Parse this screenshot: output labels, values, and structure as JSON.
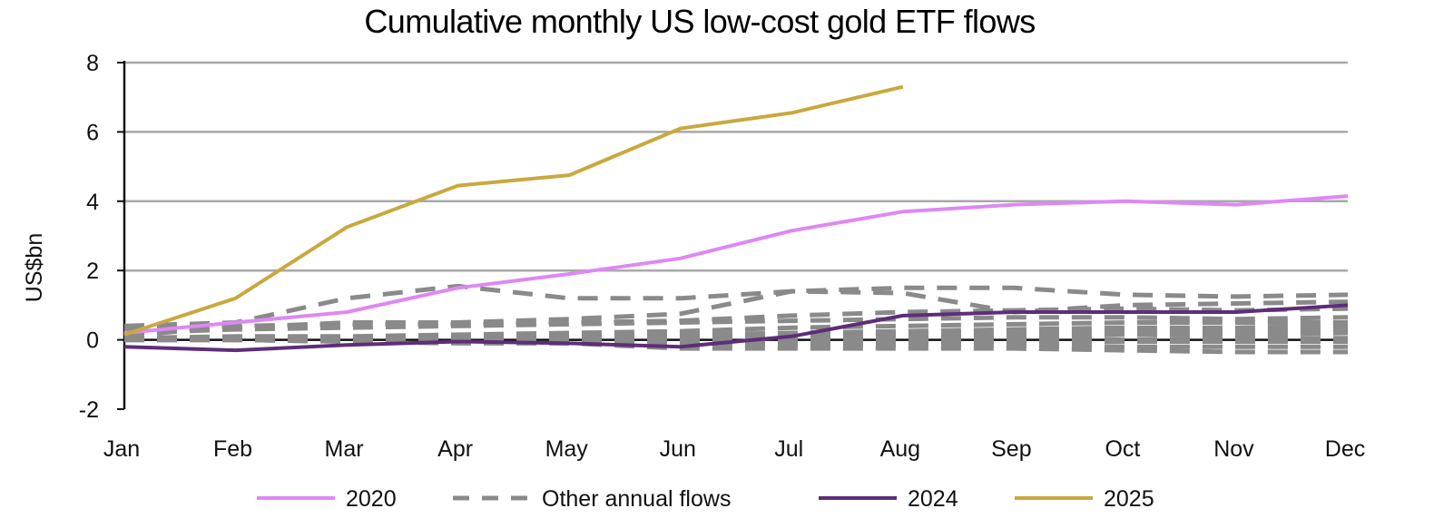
{
  "chart_data": {
    "type": "line",
    "title": "Cumulative monthly US low-cost gold ETF flows",
    "xlabel": "",
    "ylabel": "US$bn",
    "ylim": [
      -2,
      8
    ],
    "yticks": [
      8,
      6,
      4,
      2,
      0,
      -2
    ],
    "grid": "horizontal",
    "legend_position": "bottom",
    "categories": [
      "Jan",
      "Feb",
      "Mar",
      "Apr",
      "May",
      "Jun",
      "Jul",
      "Aug",
      "Sep",
      "Oct",
      "Nov",
      "Dec"
    ],
    "series": [
      {
        "name": "Other annual flows",
        "style": "dashed",
        "color": "#8a8a8a",
        "values": [
          0.4,
          0.5,
          1.2,
          1.55,
          1.2,
          1.2,
          1.4,
          1.5,
          1.5,
          1.3,
          1.25,
          1.3
        ]
      },
      {
        "name": "Other annual flows",
        "style": "dashed",
        "color": "#8a8a8a",
        "values": [
          0.3,
          0.35,
          0.5,
          0.5,
          0.6,
          0.75,
          1.4,
          1.35,
          0.8,
          1.0,
          1.05,
          1.1
        ]
      },
      {
        "name": "Other annual flows",
        "style": "dashed",
        "color": "#8a8a8a",
        "values": [
          0.1,
          0.4,
          0.45,
          0.45,
          0.5,
          0.55,
          0.7,
          0.8,
          0.85,
          0.9,
          0.85,
          0.9
        ]
      },
      {
        "name": "Other annual flows",
        "style": "dashed",
        "color": "#8a8a8a",
        "values": [
          0.2,
          0.3,
          0.35,
          0.4,
          0.45,
          0.5,
          0.55,
          0.6,
          0.65,
          0.65,
          0.6,
          0.65
        ]
      },
      {
        "name": "Other annual flows",
        "style": "dashed",
        "color": "#8a8a8a",
        "values": [
          0.05,
          0.1,
          0.1,
          0.15,
          0.2,
          0.25,
          0.35,
          0.4,
          0.45,
          0.5,
          0.5,
          0.5
        ]
      },
      {
        "name": "Other annual flows",
        "style": "dashed",
        "color": "#8a8a8a",
        "values": [
          0.0,
          0.05,
          0.05,
          0.05,
          0.1,
          0.15,
          0.2,
          0.25,
          0.3,
          0.35,
          0.35,
          0.4
        ]
      },
      {
        "name": "Other annual flows",
        "style": "dashed",
        "color": "#8a8a8a",
        "values": [
          0.0,
          0.0,
          0.05,
          0.05,
          0.05,
          0.1,
          0.15,
          0.2,
          0.2,
          0.25,
          0.25,
          0.3
        ]
      },
      {
        "name": "Other annual flows",
        "style": "dashed",
        "color": "#8a8a8a",
        "values": [
          0.0,
          0.0,
          0.0,
          0.05,
          0.05,
          0.05,
          0.1,
          0.15,
          0.1,
          0.15,
          0.15,
          0.2
        ]
      },
      {
        "name": "Other annual flows",
        "style": "dashed",
        "color": "#8a8a8a",
        "values": [
          0.0,
          0.0,
          0.0,
          0.0,
          0.0,
          0.0,
          0.05,
          0.05,
          0.05,
          0.0,
          0.05,
          0.05
        ]
      },
      {
        "name": "Other annual flows",
        "style": "dashed",
        "color": "#8a8a8a",
        "values": [
          0.0,
          0.0,
          0.0,
          -0.05,
          -0.05,
          -0.1,
          -0.05,
          -0.05,
          -0.05,
          -0.05,
          -0.05,
          -0.05
        ]
      },
      {
        "name": "Other annual flows",
        "style": "dashed",
        "color": "#8a8a8a",
        "values": [
          0.0,
          0.0,
          -0.05,
          -0.05,
          -0.1,
          -0.15,
          -0.15,
          -0.15,
          -0.15,
          -0.2,
          -0.2,
          -0.2
        ]
      },
      {
        "name": "Other annual flows",
        "style": "dashed",
        "color": "#8a8a8a",
        "values": [
          0.0,
          0.0,
          -0.05,
          -0.1,
          -0.1,
          -0.25,
          -0.25,
          -0.25,
          -0.25,
          -0.3,
          -0.35,
          -0.35
        ]
      },
      {
        "name": "2020",
        "style": "solid",
        "color": "#dd88f5",
        "values": [
          0.2,
          0.5,
          0.8,
          1.5,
          1.9,
          2.35,
          3.15,
          3.7,
          3.9,
          4.0,
          3.9,
          4.15
        ]
      },
      {
        "name": "2024",
        "style": "solid",
        "color": "#5e2d7a",
        "values": [
          -0.2,
          -0.3,
          -0.15,
          -0.05,
          -0.1,
          -0.2,
          0.1,
          0.7,
          0.8,
          0.8,
          0.8,
          1.0
        ]
      },
      {
        "name": "2025",
        "style": "solid",
        "color": "#c9a83e",
        "values": [
          0.15,
          1.2,
          3.25,
          4.45,
          4.75,
          6.1,
          6.55,
          7.3,
          null,
          null,
          null,
          null
        ]
      }
    ],
    "legend": [
      {
        "label": "2020",
        "style": "solid",
        "color": "#dd88f5"
      },
      {
        "label": "Other annual flows",
        "style": "dashed",
        "color": "#8a8a8a"
      },
      {
        "label": "2024",
        "style": "solid",
        "color": "#5e2d7a"
      },
      {
        "label": "2025",
        "style": "solid",
        "color": "#c9a83e"
      }
    ]
  }
}
